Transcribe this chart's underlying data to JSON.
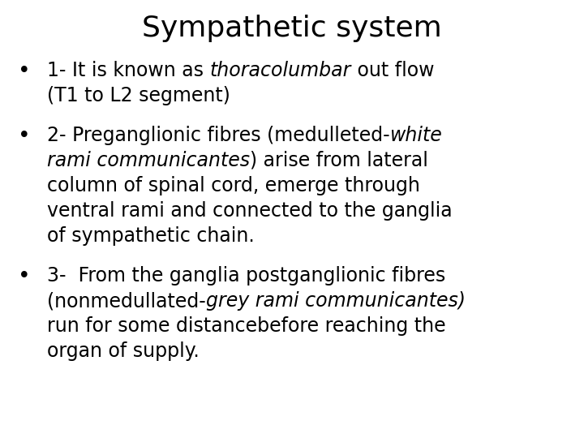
{
  "title": "Sympathetic system",
  "title_fontsize": 26,
  "background_color": "#ffffff",
  "text_color": "#000000",
  "body_fontsize": 17,
  "bullet_symbol": "•",
  "font_family": "DejaVu Sans",
  "bullet1_lines": [
    [
      [
        "1- It is known as ",
        false
      ],
      [
        "thoracolumbar",
        true
      ],
      [
        " out flow",
        false
      ]
    ],
    [
      [
        "(T1 to L2 segment)",
        false
      ]
    ]
  ],
  "bullet2_lines": [
    [
      [
        "2- Preganglionic fibres (medulleted-",
        false
      ],
      [
        "white",
        true
      ]
    ],
    [
      [
        "rami communicantes",
        true
      ],
      [
        ") arise from lateral",
        false
      ]
    ],
    [
      [
        "column of spinal cord, emerge through",
        false
      ]
    ],
    [
      [
        "ventral rami and connected to the ganglia",
        false
      ]
    ],
    [
      [
        "of sympathetic chain.",
        false
      ]
    ]
  ],
  "bullet3_lines": [
    [
      [
        "3-  From the ganglia postganglionic fibres",
        false
      ]
    ],
    [
      [
        "(nonmedullated-",
        false
      ],
      [
        "grey rami communicantes)",
        true
      ]
    ],
    [
      [
        "run for some distancebefore reaching the",
        false
      ]
    ],
    [
      [
        "organ of supply.",
        false
      ]
    ]
  ]
}
